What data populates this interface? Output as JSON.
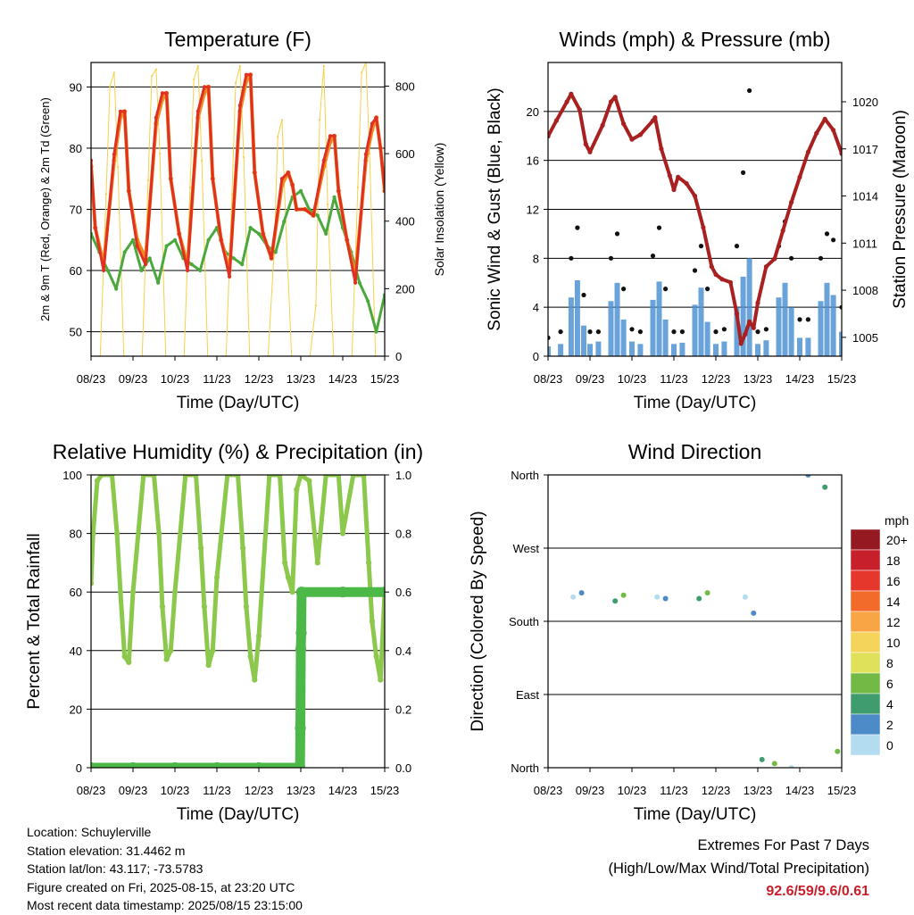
{
  "x_ticks": [
    "08/23",
    "09/23",
    "10/23",
    "11/23",
    "12/23",
    "13/23",
    "14/23",
    "15/23"
  ],
  "chart_data": [
    {
      "type": "line",
      "title": "Temperature (F)",
      "xlabel": "Time (Day/UTC)",
      "ylabel": "2m & 9m T (Red, Orange) & 2m Td (Green)",
      "y2label": "Solar Insolation (Yellow)",
      "ylim": [
        46,
        94
      ],
      "y_ticks": [
        50,
        60,
        70,
        80,
        90
      ],
      "y2lim": [
        0,
        870
      ],
      "y2_ticks": [
        0,
        200,
        400,
        600,
        800
      ],
      "grid": true,
      "series": [
        {
          "name": "2m T",
          "color": "#e03020",
          "x": [
            0,
            0.1,
            0.3,
            0.55,
            0.7,
            0.8,
            0.9,
            1.1,
            1.3,
            1.55,
            1.7,
            1.8,
            1.9,
            2.1,
            2.3,
            2.55,
            2.7,
            2.8,
            2.9,
            3.1,
            3.3,
            3.55,
            3.7,
            3.8,
            3.9,
            4.1,
            4.3,
            4.55,
            4.7,
            4.8,
            4.9,
            5.1,
            5.3,
            5.55,
            5.7,
            5.8,
            5.9,
            6.1,
            6.3,
            6.55,
            6.7,
            6.8,
            6.9,
            7.0
          ],
          "values": [
            78,
            67,
            60,
            79,
            86,
            86,
            73,
            64,
            61,
            85,
            89,
            89,
            75,
            66,
            60,
            86,
            90,
            90,
            75,
            65,
            59,
            87,
            92,
            92,
            76,
            66,
            62,
            75,
            76,
            74,
            70,
            70,
            69,
            78,
            82,
            82,
            73,
            65,
            58,
            79,
            84,
            85,
            80,
            73
          ]
        },
        {
          "name": "9m T",
          "color": "#f08a24",
          "x": [
            0,
            0.1,
            0.3,
            0.55,
            0.7,
            0.8,
            0.9,
            1.1,
            1.3,
            1.55,
            1.7,
            1.8,
            1.9,
            2.1,
            2.3,
            2.55,
            2.7,
            2.8,
            2.9,
            3.1,
            3.3,
            3.55,
            3.7,
            3.8,
            3.9,
            4.1,
            4.3,
            4.55,
            4.7,
            4.8,
            4.9,
            5.1,
            5.3,
            5.55,
            5.7,
            5.8,
            5.9,
            6.1,
            6.3,
            6.55,
            6.7,
            6.8,
            6.9,
            7.0
          ],
          "values": [
            77,
            67,
            61,
            78,
            85,
            86,
            73,
            65,
            62,
            84,
            88,
            89,
            75,
            66,
            61,
            85,
            89,
            90,
            75,
            65,
            60,
            86,
            91,
            92,
            76,
            66,
            62,
            74,
            76,
            74,
            70,
            70,
            69,
            77,
            81,
            82,
            73,
            65,
            59,
            78,
            83,
            85,
            80,
            73
          ]
        },
        {
          "name": "2m Td",
          "color": "#4aa83c",
          "x": [
            0,
            0.2,
            0.4,
            0.6,
            0.8,
            1.0,
            1.2,
            1.4,
            1.6,
            1.8,
            2.0,
            2.2,
            2.4,
            2.6,
            2.8,
            3.0,
            3.2,
            3.4,
            3.6,
            3.8,
            4.0,
            4.2,
            4.4,
            4.6,
            4.8,
            5.0,
            5.2,
            5.4,
            5.6,
            5.8,
            6.0,
            6.2,
            6.4,
            6.6,
            6.8,
            7.0
          ],
          "values": [
            66,
            63,
            60,
            57,
            63,
            65,
            60,
            62,
            58,
            64,
            65,
            62,
            61,
            60,
            65,
            67,
            63,
            62,
            61,
            67,
            66,
            64,
            63,
            68,
            72,
            73,
            70,
            69,
            66,
            72,
            67,
            63,
            58,
            55,
            50,
            56
          ]
        },
        {
          "name": "Solar Insolation",
          "color": "#f5d04a",
          "axis": "y2",
          "x": [
            0,
            0.22,
            0.36,
            0.45,
            0.55,
            0.64,
            0.78,
            1.22,
            1.36,
            1.45,
            1.55,
            1.64,
            1.78,
            2.22,
            2.36,
            2.45,
            2.55,
            2.64,
            2.78,
            3.22,
            3.36,
            3.45,
            3.55,
            3.64,
            3.78,
            4.22,
            4.36,
            4.45,
            4.55,
            4.64,
            4.78,
            5.22,
            5.36,
            5.45,
            5.55,
            5.64,
            5.78,
            6.22,
            6.36,
            6.45,
            6.55,
            6.64,
            6.78,
            7.0
          ],
          "values": [
            0,
            0,
            480,
            800,
            840,
            560,
            0,
            0,
            520,
            830,
            850,
            600,
            0,
            0,
            500,
            820,
            860,
            580,
            0,
            0,
            480,
            810,
            860,
            590,
            0,
            0,
            300,
            650,
            700,
            400,
            0,
            0,
            150,
            700,
            860,
            450,
            0,
            0,
            500,
            840,
            870,
            600,
            0,
            0
          ]
        }
      ]
    },
    {
      "type": "scatter",
      "title": "Winds (mph) & Pressure (mb)",
      "xlabel": "Time (Day/UTC)",
      "ylabel": "Sonic Wind & Gust (Blue, Black)",
      "y2label": "Station Pressure (Maroon)",
      "ylim": [
        0,
        24
      ],
      "y_ticks": [
        0,
        4,
        8,
        12,
        16,
        20
      ],
      "y2lim": [
        1003.8,
        1022.5
      ],
      "y2_ticks": [
        1005,
        1008,
        1011,
        1014,
        1017,
        1020
      ],
      "grid": true,
      "series": [
        {
          "name": "Sonic Wind",
          "color": "#4f93d2",
          "x": [
            0,
            0.3,
            0.55,
            0.7,
            0.85,
            1.0,
            1.2,
            1.5,
            1.65,
            1.8,
            2.0,
            2.2,
            2.5,
            2.65,
            2.8,
            3.0,
            3.2,
            3.5,
            3.65,
            3.8,
            4.0,
            4.2,
            4.5,
            4.65,
            4.8,
            5.0,
            5.2,
            5.5,
            5.65,
            5.8,
            6.0,
            6.2,
            6.5,
            6.65,
            6.8,
            7.0
          ],
          "values": [
            0.8,
            1.0,
            4.8,
            6.2,
            2.5,
            1.0,
            1.2,
            4.5,
            6.0,
            3.0,
            1.2,
            1.0,
            4.6,
            6.1,
            3.0,
            1.0,
            1.1,
            4.2,
            5.6,
            2.8,
            1.0,
            1.2,
            4.0,
            6.5,
            8.0,
            1.0,
            1.3,
            4.8,
            6.0,
            4.0,
            1.5,
            1.5,
            4.5,
            6.0,
            5.0,
            2.0
          ]
        },
        {
          "name": "Gust",
          "color": "#111111",
          "x": [
            0,
            0.3,
            0.55,
            0.7,
            0.85,
            1.0,
            1.2,
            1.5,
            1.65,
            1.8,
            2.0,
            2.2,
            2.5,
            2.65,
            2.8,
            3.0,
            3.2,
            3.5,
            3.65,
            3.8,
            4.0,
            4.2,
            4.5,
            4.65,
            4.8,
            5.0,
            5.2,
            5.5,
            5.65,
            5.8,
            6.0,
            6.2,
            6.5,
            6.65,
            6.8,
            7.0
          ],
          "values": [
            1.5,
            2.0,
            8.0,
            10.5,
            5.0,
            2.0,
            2.0,
            8.0,
            10.0,
            5.5,
            2.2,
            2.0,
            8.2,
            10.5,
            5.5,
            2.0,
            2.0,
            7.0,
            9.0,
            5.5,
            2.0,
            2.2,
            9.0,
            15.0,
            21.7,
            2.0,
            2.2,
            9.0,
            11.0,
            8.0,
            3.0,
            3.0,
            8.0,
            10.0,
            9.5,
            4.0
          ]
        },
        {
          "name": "Station Pressure",
          "color": "#a8201f",
          "axis": "y2",
          "x": [
            0,
            0.2,
            0.45,
            0.55,
            0.75,
            0.9,
            1.0,
            1.3,
            1.5,
            1.6,
            1.8,
            2.0,
            2.2,
            2.5,
            2.55,
            2.7,
            2.9,
            3.0,
            3.1,
            3.3,
            3.5,
            3.7,
            3.9,
            4.0,
            4.15,
            4.35,
            4.5,
            4.6,
            4.7,
            4.8,
            4.9,
            5.0,
            5.2,
            5.4,
            5.6,
            5.8,
            6.0,
            6.2,
            6.4,
            6.6,
            6.8,
            7.0
          ],
          "values": [
            1017.8,
            1018.8,
            1020.0,
            1020.5,
            1019.5,
            1017.3,
            1016.8,
            1018.5,
            1020.0,
            1020.3,
            1018.6,
            1017.6,
            1017.9,
            1018.8,
            1019.0,
            1017.0,
            1015.3,
            1014.4,
            1015.2,
            1014.8,
            1014.0,
            1012.0,
            1009.5,
            1009.0,
            1008.7,
            1008.5,
            1006.5,
            1004.6,
            1005.2,
            1006.0,
            1005.6,
            1007.2,
            1009.5,
            1010.0,
            1011.8,
            1013.6,
            1015.2,
            1016.8,
            1018.0,
            1018.9,
            1018.2,
            1016.7
          ]
        }
      ]
    },
    {
      "type": "line",
      "title": "Relative Humidity (%) & Precipitation (in)",
      "xlabel": "Time (Day/UTC)",
      "ylabel": "Percent & Total Rainfall",
      "ylim": [
        0,
        100
      ],
      "y_ticks": [
        0,
        20,
        40,
        60,
        80,
        100
      ],
      "y2lim": [
        0,
        1.0
      ],
      "y2_ticks": [
        "0.0",
        "0.2",
        "0.4",
        "0.6",
        "0.8",
        "1.0"
      ],
      "grid": true,
      "series": [
        {
          "name": "Relative Humidity",
          "color": "#8cc84b",
          "x": [
            0,
            0.05,
            0.15,
            0.25,
            0.5,
            0.62,
            0.7,
            0.8,
            0.9,
            1.0,
            1.25,
            1.5,
            1.62,
            1.7,
            1.8,
            1.9,
            2.0,
            2.25,
            2.5,
            2.62,
            2.7,
            2.8,
            2.9,
            3.0,
            3.25,
            3.5,
            3.62,
            3.7,
            3.8,
            3.9,
            4.0,
            4.25,
            4.5,
            4.62,
            4.7,
            4.8,
            4.9,
            5.0,
            5.2,
            5.4,
            5.6,
            5.9,
            6.0,
            6.25,
            6.5,
            6.62,
            6.7,
            6.8,
            6.9,
            7.0
          ],
          "values": [
            63,
            80,
            98,
            100,
            100,
            80,
            60,
            38,
            36,
            60,
            100,
            100,
            80,
            55,
            37,
            40,
            60,
            100,
            100,
            75,
            55,
            35,
            40,
            65,
            100,
            100,
            75,
            55,
            38,
            30,
            45,
            100,
            100,
            70,
            65,
            60,
            95,
            100,
            98,
            70,
            100,
            100,
            80,
            100,
            100,
            70,
            50,
            38,
            30,
            60
          ]
        },
        {
          "name": "Total Rainfall",
          "color": "#4cb848",
          "axis": "y2",
          "x": [
            0,
            1,
            2,
            3,
            4,
            4.98,
            4.99,
            5.0,
            5.01,
            5.02,
            6,
            7
          ],
          "values": [
            0,
            0,
            0,
            0,
            0,
            0,
            0.135,
            0.405,
            0.46,
            0.6,
            0.6,
            0.6
          ]
        }
      ]
    },
    {
      "type": "scatter",
      "title": "Wind Direction",
      "xlabel": "Time (Day/UTC)",
      "ylabel": "Direction (Colored By Speed)",
      "y_ticks": [
        "North",
        "East",
        "South",
        "West",
        "North"
      ],
      "grid": true,
      "legend": {
        "title": "mph",
        "labels": [
          "20+",
          "18",
          "16",
          "14",
          "12",
          "10",
          "8",
          "6",
          "4",
          "2",
          "0"
        ],
        "colors": [
          "#951920",
          "#c8202a",
          "#e5372c",
          "#f26b2b",
          "#f8a546",
          "#f5d45c",
          "#e0e15a",
          "#73b945",
          "#3f9c6f",
          "#4c8bc7",
          "#b4dcf1"
        ]
      },
      "series": [
        {
          "name": "Direction",
          "x": [
            0.6,
            0.8,
            1.6,
            1.8,
            2.6,
            2.8,
            3.6,
            3.8,
            4.7,
            4.9,
            5.1,
            5.4,
            5.8,
            6.2,
            6.6,
            6.9
          ],
          "values": [
            210,
            215,
            205,
            212,
            210,
            208,
            208,
            215,
            210,
            190,
            10,
            5,
            0,
            360,
            345,
            20
          ]
        }
      ]
    }
  ],
  "info": {
    "location": "Location: Schuylerville",
    "elevation": "Station elevation: 31.4462 m",
    "latlon": "Station lat/lon: 43.117; -73.5783",
    "created": "Figure created on Fri, 2025-08-15, at 23:20 UTC",
    "recent": "Most recent data timestamp: 2025/08/15 23:15:00"
  },
  "extremes": {
    "title": "Extremes For Past 7 Days",
    "subtitle": "(High/Low/Max Wind/Total Precipitation)",
    "values": "92.6/59/9.6/0.61"
  }
}
